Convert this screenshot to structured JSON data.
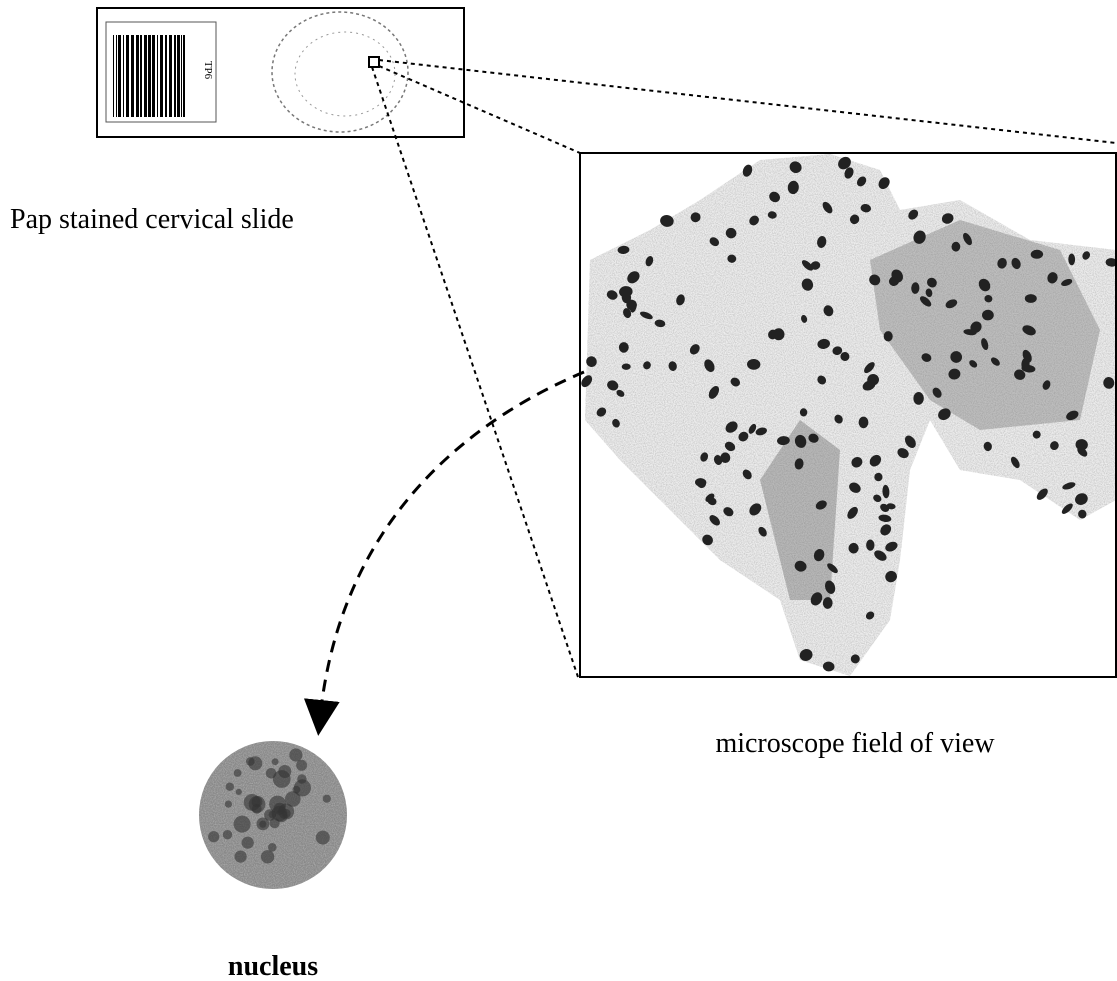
{
  "slide": {
    "caption": "Pap stained cervical slide",
    "label": "TP6"
  },
  "field_of_view": {
    "caption": "microscope field of view"
  },
  "nucleus": {
    "caption": "nucleus"
  }
}
